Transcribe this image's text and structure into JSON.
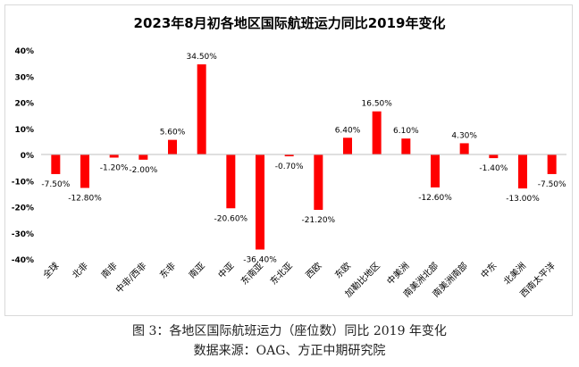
{
  "chart_data": {
    "type": "bar",
    "title": "2023年8月初各地区国际航班运力同比2019年变化",
    "xlabel": "",
    "ylabel": "",
    "ylim": [
      -40,
      40
    ],
    "yticks": [
      "40%",
      "30%",
      "20%",
      "10%",
      "0%",
      "-10%",
      "-20%",
      "-30%",
      "-40%"
    ],
    "grid": false,
    "bar_color": "#ff0000",
    "categories": [
      "全球",
      "北非",
      "南非",
      "中非/西非",
      "东非",
      "南亚",
      "中亚",
      "东南亚",
      "东北亚",
      "西欧",
      "东欧",
      "加勒比地区",
      "中美洲",
      "南美洲北部",
      "南美洲南部",
      "中东",
      "北美洲",
      "西南太平洋"
    ],
    "values": [
      -7.5,
      -12.8,
      -1.2,
      -2.0,
      5.6,
      34.5,
      -20.6,
      -36.4,
      -0.7,
      -21.2,
      6.4,
      16.5,
      6.1,
      -12.6,
      4.3,
      -1.4,
      -13.0,
      -7.5
    ],
    "labels": [
      "-7.50%",
      "-12.80%",
      "-1.20%",
      "-2.00%",
      "5.60%",
      "34.50%",
      "-20.60%",
      "-36.40%",
      "-0.70%",
      "-21.20%",
      "6.40%",
      "16.50%",
      "6.10%",
      "-12.60%",
      "4.30%",
      "-1.40%",
      "-13.00%",
      "-7.50%"
    ]
  },
  "caption": {
    "figure": "图 3：各地区国际航班运力（座位数）同比 2019 年变化",
    "source": "数据来源：OAG、方正中期研究院"
  }
}
